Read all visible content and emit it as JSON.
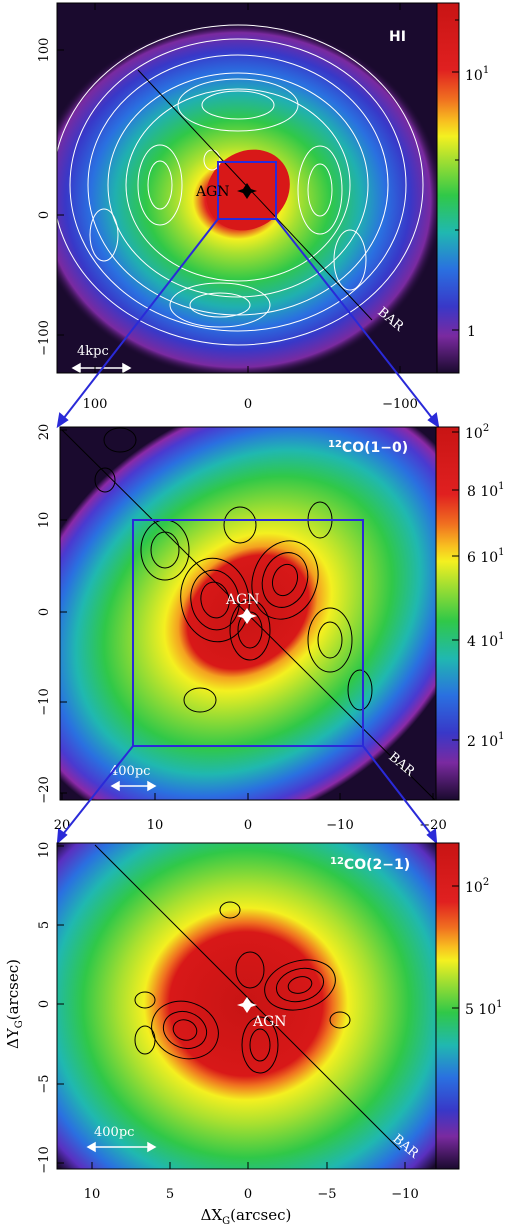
{
  "figure": {
    "panels": [
      {
        "id": "hi",
        "label": "HI",
        "scale_bar": "4kpc",
        "bar_label": "BAR",
        "agn_label": "AGN",
        "x_ticks": [
          "100",
          "0",
          "−100"
        ],
        "y_ticks": [
          "100",
          "0",
          "−100"
        ],
        "colorbar_ticks": [
          "10",
          "1",
          "1"
        ],
        "colorbar_exponents": [
          "1",
          "",
          ""
        ],
        "colorbar_scale": "log"
      },
      {
        "id": "co10",
        "label_sup": "12",
        "label_main": "CO(1−0)",
        "scale_bar": "400pc",
        "bar_label": "BAR",
        "agn_label": "AGN",
        "x_ticks": [
          "20",
          "10",
          "0",
          "−10",
          "−20"
        ],
        "y_ticks": [
          "20",
          "10",
          "0",
          "−10",
          "−20"
        ],
        "colorbar_ticks": [
          "10",
          "8 10",
          "6 10",
          "4 10",
          "2 10"
        ],
        "colorbar_exponents": [
          "2",
          "1",
          "1",
          "1",
          "1"
        ]
      },
      {
        "id": "co21",
        "label_sup": "12",
        "label_main": "CO(2−1)",
        "scale_bar": "400pc",
        "bar_label": "BAR",
        "agn_label": "AGN",
        "x_ticks": [
          "10",
          "5",
          "0",
          "−5",
          "−10"
        ],
        "y_ticks": [
          "10",
          "5",
          "0",
          "−5",
          "−10"
        ],
        "colorbar_ticks": [
          "10",
          "5 10"
        ],
        "colorbar_exponents": [
          "2",
          "1"
        ],
        "xlabel_main": "ΔX",
        "xlabel_sub": "G",
        "xlabel_unit": "(arcsec)",
        "ylabel_main": "ΔY",
        "ylabel_sub": "G",
        "ylabel_unit": "(arcsec)"
      }
    ],
    "colors": {
      "zoom_lines": "#2a2ad8",
      "contours_hi": "#ffffff",
      "contours_co": "#000000",
      "colormap": [
        "#1a0a2e",
        "#5a1f7a",
        "#8a2aa8",
        "#3a3ad0",
        "#2d7ee8",
        "#20c0d0",
        "#28c878",
        "#40d040",
        "#a8e030",
        "#f4f020",
        "#f8c020",
        "#f07020",
        "#e02020",
        "#c81414"
      ]
    }
  }
}
